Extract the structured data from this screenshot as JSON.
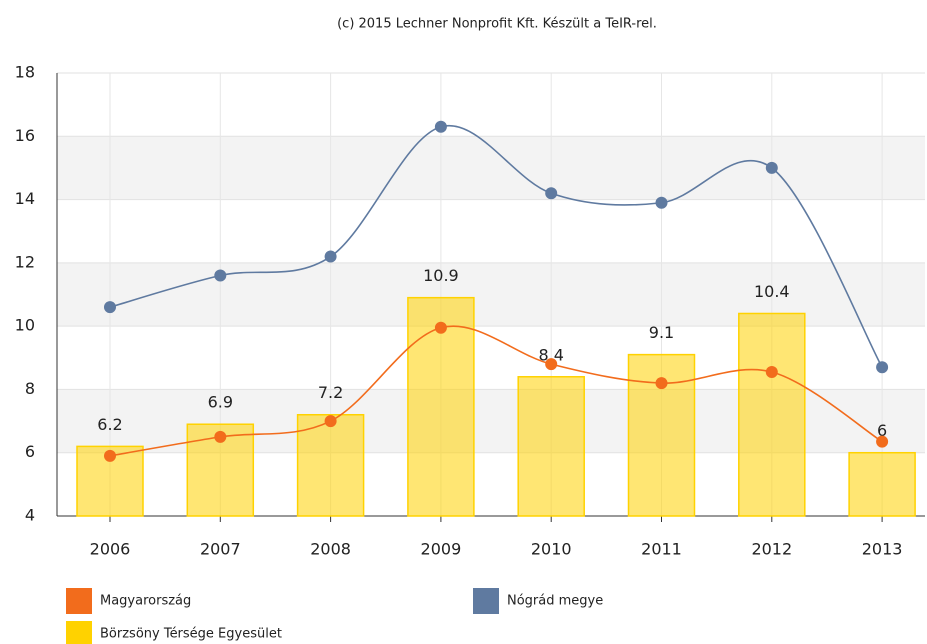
{
  "chart_data": {
    "type": "bar_line",
    "title": "(c) 2015 Lechner Nonprofit Kft. Készült a TeIR-rel.",
    "categories": [
      "2006",
      "2007",
      "2008",
      "2009",
      "2010",
      "2011",
      "2012",
      "2013"
    ],
    "series": [
      {
        "name": "Magyarország",
        "type": "line",
        "color": "#f26c1c",
        "values": [
          5.9,
          6.5,
          7.0,
          9.95,
          8.8,
          8.2,
          8.55,
          6.35
        ]
      },
      {
        "name": "Nógrád megye",
        "type": "line",
        "color": "#5f7aa0",
        "values": [
          10.6,
          11.6,
          12.2,
          16.3,
          14.2,
          13.9,
          15.0,
          8.7
        ]
      },
      {
        "name": "Börzsöny Térsége Egyesület",
        "type": "bar",
        "color": "#ffd200",
        "values": [
          6.2,
          6.9,
          7.2,
          10.9,
          8.4,
          9.1,
          10.4,
          6
        ]
      }
    ],
    "ylim": [
      4,
      18
    ],
    "yticks": [
      4,
      6,
      8,
      10,
      12,
      14,
      16,
      18
    ],
    "grid": true,
    "legend": "bottom"
  }
}
